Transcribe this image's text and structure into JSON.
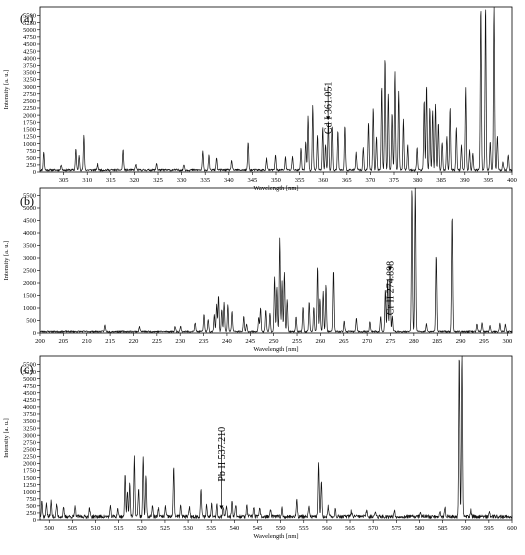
{
  "figure": {
    "panels": [
      "(a)",
      "(b)",
      "(c)"
    ]
  },
  "chart_data": [
    {
      "type": "line",
      "panel_label": "(a)",
      "xlabel": "Wavelength [nm]",
      "ylabel": "Intensity [a. u.]",
      "xlim": [
        300,
        400
      ],
      "ylim": [
        0,
        5800
      ],
      "xticks": [
        305,
        310,
        315,
        320,
        325,
        330,
        335,
        340,
        345,
        350,
        355,
        360,
        365,
        370,
        375,
        380,
        385,
        390,
        395,
        400
      ],
      "yticks": [
        0,
        250,
        500,
        750,
        1000,
        1250,
        1500,
        1750,
        2000,
        2250,
        2500,
        2750,
        3000,
        3250,
        3500,
        3750,
        4000,
        4250,
        4500,
        4750,
        5000,
        5250,
        5500
      ],
      "baseline": 70,
      "noise_seed": 11,
      "peaks": [
        [
          300.8,
          650
        ],
        [
          304.5,
          200
        ],
        [
          307.6,
          750
        ],
        [
          308.3,
          500
        ],
        [
          309.3,
          1200
        ],
        [
          312.2,
          200
        ],
        [
          317.6,
          720
        ],
        [
          320.3,
          200
        ],
        [
          324.7,
          250
        ],
        [
          330.5,
          200
        ],
        [
          334.5,
          650
        ],
        [
          335.8,
          500
        ],
        [
          337.4,
          450
        ],
        [
          340.6,
          350
        ],
        [
          344.1,
          1000
        ],
        [
          348.0,
          400
        ],
        [
          349.9,
          550
        ],
        [
          352.0,
          450
        ],
        [
          353.5,
          500
        ],
        [
          355.3,
          800
        ],
        [
          356.3,
          1000
        ],
        [
          356.8,
          1900
        ],
        [
          357.8,
          2300
        ],
        [
          358.8,
          1200
        ],
        [
          359.9,
          1500
        ],
        [
          360.5,
          900
        ],
        [
          361.1,
          1750
        ],
        [
          361.9,
          1600
        ],
        [
          363.1,
          1400
        ],
        [
          364.6,
          1550
        ],
        [
          367.0,
          600
        ],
        [
          368.5,
          800
        ],
        [
          369.6,
          1700
        ],
        [
          370.6,
          2200
        ],
        [
          371.3,
          1200
        ],
        [
          372.4,
          3000
        ],
        [
          373.1,
          4000
        ],
        [
          373.8,
          2700
        ],
        [
          374.6,
          2000
        ],
        [
          375.2,
          3500
        ],
        [
          376.0,
          2800
        ],
        [
          377.0,
          1800
        ],
        [
          377.9,
          900
        ],
        [
          379.9,
          800
        ],
        [
          381.4,
          2500
        ],
        [
          381.9,
          3000
        ],
        [
          382.6,
          2200
        ],
        [
          383.2,
          2100
        ],
        [
          383.8,
          2300
        ],
        [
          384.4,
          1700
        ],
        [
          385.2,
          1000
        ],
        [
          386.2,
          1200
        ],
        [
          386.9,
          2200
        ],
        [
          388.2,
          1500
        ],
        [
          389.3,
          900
        ],
        [
          390.2,
          2900
        ],
        [
          391.0,
          700
        ],
        [
          391.7,
          600
        ],
        [
          393.4,
          5800
        ],
        [
          394.4,
          5800
        ],
        [
          395.4,
          1000
        ],
        [
          396.2,
          5800
        ],
        [
          396.9,
          1200
        ],
        [
          398.1,
          300
        ],
        [
          399.2,
          550
        ]
      ],
      "annotation": {
        "text": "Cd I 361.051",
        "x": 361.051,
        "y": 1750
      }
    },
    {
      "type": "line",
      "panel_label": "(b)",
      "xlabel": "Wavelength [nm]",
      "ylabel": "Intensity [a. u.]",
      "xlim": [
        200,
        301
      ],
      "ylim": [
        0,
        5800
      ],
      "xticks": [
        200,
        205,
        210,
        215,
        220,
        225,
        230,
        235,
        240,
        245,
        250,
        255,
        260,
        265,
        270,
        275,
        280,
        285,
        290,
        295,
        300
      ],
      "yticks": [
        0,
        500,
        1000,
        1500,
        2000,
        2500,
        3000,
        3500,
        4000,
        4500,
        5000,
        5500
      ],
      "baseline": 60,
      "noise_seed": 23,
      "peaks": [
        [
          213.9,
          250
        ],
        [
          221.3,
          200
        ],
        [
          228.9,
          200
        ],
        [
          230.1,
          200
        ],
        [
          233.2,
          350
        ],
        [
          235.1,
          700
        ],
        [
          236.0,
          500
        ],
        [
          237.3,
          700
        ],
        [
          237.8,
          1100
        ],
        [
          238.2,
          1450
        ],
        [
          238.9,
          900
        ],
        [
          239.4,
          1150
        ],
        [
          240.2,
          1050
        ],
        [
          241.1,
          800
        ],
        [
          243.6,
          600
        ],
        [
          244.2,
          300
        ],
        [
          246.8,
          550
        ],
        [
          247.2,
          950
        ],
        [
          248.3,
          900
        ],
        [
          249.2,
          750
        ],
        [
          250.2,
          2200
        ],
        [
          250.7,
          1800
        ],
        [
          251.3,
          3750
        ],
        [
          251.8,
          2000
        ],
        [
          252.3,
          2400
        ],
        [
          252.9,
          1300
        ],
        [
          254.8,
          600
        ],
        [
          256.3,
          1000
        ],
        [
          257.6,
          1200
        ],
        [
          258.6,
          1000
        ],
        [
          259.4,
          2600
        ],
        [
          259.9,
          1300
        ],
        [
          260.6,
          1600
        ],
        [
          261.2,
          1900
        ],
        [
          262.8,
          2500
        ],
        [
          265.1,
          400
        ],
        [
          267.7,
          550
        ],
        [
          270.6,
          400
        ],
        [
          272.9,
          600
        ],
        [
          273.9,
          1700
        ],
        [
          274.4,
          2100
        ],
        [
          274.9,
          2400
        ],
        [
          275.4,
          600
        ],
        [
          279.6,
          5800
        ],
        [
          280.3,
          5800
        ],
        [
          282.7,
          300
        ],
        [
          284.8,
          3100
        ],
        [
          288.2,
          4700
        ],
        [
          293.5,
          300
        ],
        [
          294.6,
          350
        ],
        [
          296.3,
          250
        ],
        [
          298.4,
          350
        ],
        [
          299.6,
          300
        ]
      ],
      "annotation": {
        "text": "Cr II 274.898",
        "x": 274.898,
        "y": 2400
      }
    },
    {
      "type": "line",
      "panel_label": "(c)",
      "xlabel": "Wavelength [nm]",
      "ylabel": "Intensity [a. u.]",
      "xlim": [
        498,
        600
      ],
      "ylim": [
        0,
        5800
      ],
      "xticks": [
        500,
        505,
        510,
        515,
        520,
        525,
        530,
        535,
        540,
        545,
        550,
        555,
        560,
        565,
        570,
        575,
        580,
        585,
        590,
        595,
        600
      ],
      "yticks": [
        0,
        250,
        500,
        750,
        1000,
        1250,
        1500,
        1750,
        2000,
        2250,
        2500,
        2750,
        3000,
        3250,
        3500,
        3750,
        4000,
        4250,
        4500,
        4750,
        5000,
        5250,
        5500
      ],
      "baseline": 120,
      "noise_seed": 37,
      "peaks": [
        [
          498.4,
          600
        ],
        [
          499.4,
          500
        ],
        [
          500.4,
          550
        ],
        [
          501.6,
          450
        ],
        [
          503.1,
          300
        ],
        [
          505.6,
          350
        ],
        [
          508.7,
          300
        ],
        [
          513.2,
          350
        ],
        [
          514.8,
          300
        ],
        [
          516.4,
          1500
        ],
        [
          516.9,
          900
        ],
        [
          517.4,
          1200
        ],
        [
          518.4,
          2100
        ],
        [
          519.3,
          1000
        ],
        [
          520.3,
          2100
        ],
        [
          520.9,
          1500
        ],
        [
          522.3,
          400
        ],
        [
          523.6,
          300
        ],
        [
          525.1,
          350
        ],
        [
          526.9,
          1800
        ],
        [
          528.4,
          400
        ],
        [
          530.3,
          350
        ],
        [
          532.8,
          1000
        ],
        [
          534.0,
          400
        ],
        [
          535.1,
          500
        ],
        [
          536.2,
          450
        ],
        [
          537.6,
          300
        ],
        [
          538.3,
          400
        ],
        [
          539.5,
          600
        ],
        [
          540.3,
          450
        ],
        [
          542.7,
          400
        ],
        [
          544.2,
          350
        ],
        [
          545.5,
          300
        ],
        [
          547.8,
          250
        ],
        [
          550.3,
          300
        ],
        [
          553.5,
          650
        ],
        [
          556.1,
          350
        ],
        [
          558.2,
          1900
        ],
        [
          558.8,
          1300
        ],
        [
          560.3,
          350
        ],
        [
          561.8,
          300
        ],
        [
          565.3,
          200
        ],
        [
          568.6,
          250
        ],
        [
          570.5,
          200
        ],
        [
          574.6,
          200
        ],
        [
          580.2,
          200
        ],
        [
          584.4,
          200
        ],
        [
          585.5,
          350
        ],
        [
          588.6,
          5800
        ],
        [
          589.2,
          5800
        ],
        [
          591.1,
          250
        ],
        [
          595.1,
          200
        ]
      ],
      "annotation": {
        "text": "Pb II 537.210",
        "x": 537.21,
        "y": 300
      }
    }
  ]
}
